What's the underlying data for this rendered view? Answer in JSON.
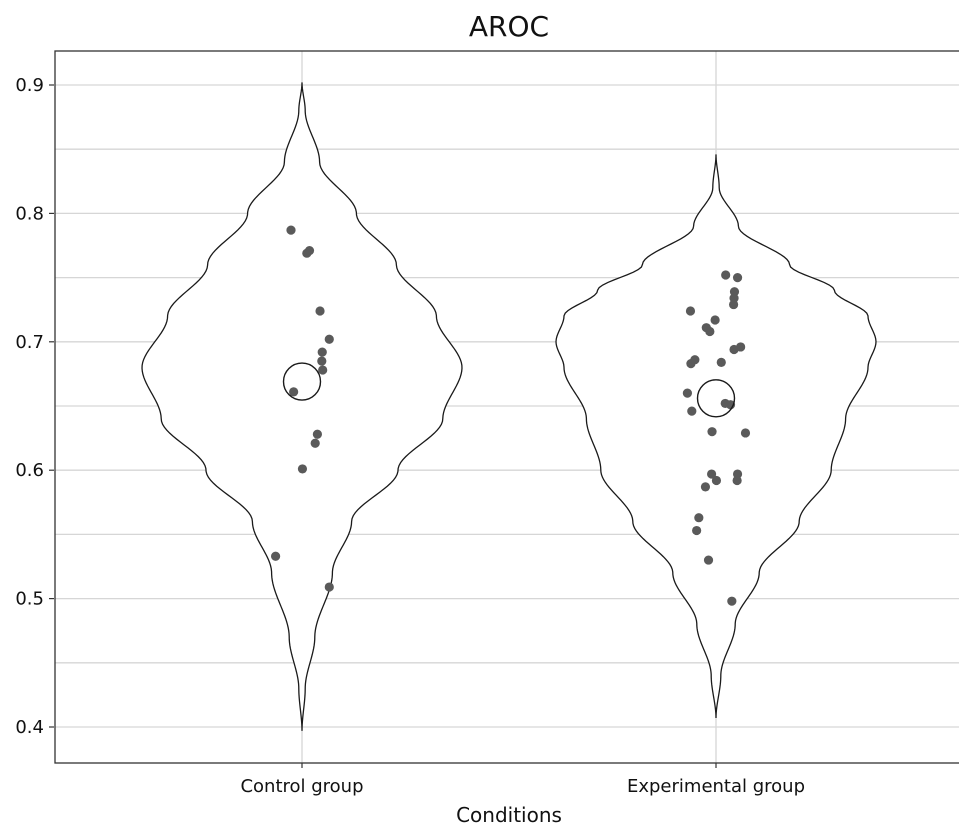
{
  "chart_data": {
    "type": "violin",
    "title": "AROC",
    "xlabel": "Conditions",
    "ylabel": "",
    "ylim": [
      0.37,
      0.93
    ],
    "y_ticks": [
      0.4,
      0.5,
      0.6,
      0.7,
      0.8,
      0.9
    ],
    "y_tick_labels": [
      "0.4",
      "0.5",
      "0.6",
      "0.7",
      "0.8",
      "0.9"
    ],
    "y_minor_gridlines": [
      0.45,
      0.55,
      0.65,
      0.75,
      0.85
    ],
    "grid": true,
    "categories": [
      "Control group",
      "Experimental group"
    ],
    "groups": [
      {
        "category": "Control group",
        "mean": 0.669,
        "range": [
          0.397,
          0.902
        ],
        "density_profile": [
          [
            0.397,
            0.0
          ],
          [
            0.43,
            0.02
          ],
          [
            0.47,
            0.08
          ],
          [
            0.52,
            0.19
          ],
          [
            0.56,
            0.31
          ],
          [
            0.6,
            0.6
          ],
          [
            0.64,
            0.88
          ],
          [
            0.68,
            1.0
          ],
          [
            0.72,
            0.84
          ],
          [
            0.76,
            0.59
          ],
          [
            0.8,
            0.34
          ],
          [
            0.84,
            0.11
          ],
          [
            0.88,
            0.02
          ],
          [
            0.902,
            0.0
          ]
        ],
        "points": [
          {
            "x_jitter": -0.25,
            "y": 0.787
          },
          {
            "x_jitter": 0.17,
            "y": 0.771
          },
          {
            "x_jitter": 0.11,
            "y": 0.769
          },
          {
            "x_jitter": 0.41,
            "y": 0.724
          },
          {
            "x_jitter": 0.62,
            "y": 0.702
          },
          {
            "x_jitter": 0.46,
            "y": 0.692
          },
          {
            "x_jitter": 0.45,
            "y": 0.685
          },
          {
            "x_jitter": 0.47,
            "y": 0.678
          },
          {
            "x_jitter": -0.19,
            "y": 0.661
          },
          {
            "x_jitter": 0.35,
            "y": 0.628
          },
          {
            "x_jitter": 0.3,
            "y": 0.621
          },
          {
            "x_jitter": 0.01,
            "y": 0.601
          },
          {
            "x_jitter": -0.6,
            "y": 0.533
          },
          {
            "x_jitter": 0.62,
            "y": 0.509
          }
        ]
      },
      {
        "category": "Experimental group",
        "mean": 0.656,
        "range": [
          0.407,
          0.846
        ],
        "density_profile": [
          [
            0.407,
            0.0
          ],
          [
            0.44,
            0.03
          ],
          [
            0.48,
            0.12
          ],
          [
            0.52,
            0.27
          ],
          [
            0.56,
            0.52
          ],
          [
            0.6,
            0.72
          ],
          [
            0.64,
            0.81
          ],
          [
            0.68,
            0.95
          ],
          [
            0.7,
            1.0
          ],
          [
            0.72,
            0.95
          ],
          [
            0.74,
            0.74
          ],
          [
            0.76,
            0.46
          ],
          [
            0.79,
            0.14
          ],
          [
            0.82,
            0.02
          ],
          [
            0.846,
            0.0
          ]
        ],
        "points": [
          {
            "x_jitter": 0.22,
            "y": 0.752
          },
          {
            "x_jitter": 0.49,
            "y": 0.75
          },
          {
            "x_jitter": 0.42,
            "y": 0.739
          },
          {
            "x_jitter": 0.41,
            "y": 0.734
          },
          {
            "x_jitter": 0.4,
            "y": 0.729
          },
          {
            "x_jitter": -0.58,
            "y": 0.724
          },
          {
            "x_jitter": -0.02,
            "y": 0.717
          },
          {
            "x_jitter": -0.22,
            "y": 0.711
          },
          {
            "x_jitter": -0.14,
            "y": 0.708
          },
          {
            "x_jitter": 0.56,
            "y": 0.696
          },
          {
            "x_jitter": 0.41,
            "y": 0.694
          },
          {
            "x_jitter": -0.48,
            "y": 0.686
          },
          {
            "x_jitter": 0.12,
            "y": 0.684
          },
          {
            "x_jitter": -0.57,
            "y": 0.683
          },
          {
            "x_jitter": -0.65,
            "y": 0.66
          },
          {
            "x_jitter": 0.21,
            "y": 0.652
          },
          {
            "x_jitter": 0.33,
            "y": 0.651
          },
          {
            "x_jitter": -0.55,
            "y": 0.646
          },
          {
            "x_jitter": -0.09,
            "y": 0.63
          },
          {
            "x_jitter": 0.67,
            "y": 0.629
          },
          {
            "x_jitter": -0.1,
            "y": 0.597
          },
          {
            "x_jitter": 0.49,
            "y": 0.597
          },
          {
            "x_jitter": 0.48,
            "y": 0.592
          },
          {
            "x_jitter": 0.01,
            "y": 0.592
          },
          {
            "x_jitter": -0.24,
            "y": 0.587
          },
          {
            "x_jitter": -0.39,
            "y": 0.563
          },
          {
            "x_jitter": -0.44,
            "y": 0.553
          },
          {
            "x_jitter": -0.17,
            "y": 0.53
          },
          {
            "x_jitter": 0.36,
            "y": 0.498
          }
        ]
      }
    ]
  }
}
